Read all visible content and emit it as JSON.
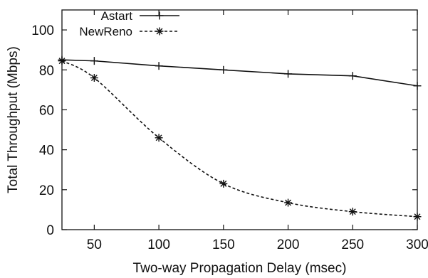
{
  "chart_data": {
    "type": "line",
    "xlabel": "Two-way Propagation Delay (msec)",
    "ylabel": "Total Throughput (Mbps)",
    "xlim": [
      25,
      300
    ],
    "ylim": [
      0,
      110
    ],
    "x_ticks": [
      50,
      100,
      150,
      200,
      250,
      300
    ],
    "y_ticks": [
      0,
      20,
      40,
      60,
      80,
      100
    ],
    "grid": false,
    "legend_position": "top-left",
    "series": [
      {
        "name": "Astart",
        "line_style": "solid",
        "marker": "plus",
        "color": "#111111",
        "x": [
          25,
          50,
          100,
          150,
          200,
          250,
          300
        ],
        "y": [
          85,
          84.5,
          82,
          80,
          78,
          77,
          72
        ]
      },
      {
        "name": "NewReno",
        "line_style": "dashed",
        "marker": "asterisk",
        "color": "#111111",
        "x": [
          25,
          50,
          100,
          150,
          200,
          250,
          300
        ],
        "y": [
          84.5,
          76,
          46,
          23,
          13.5,
          9,
          6.5
        ]
      }
    ]
  }
}
